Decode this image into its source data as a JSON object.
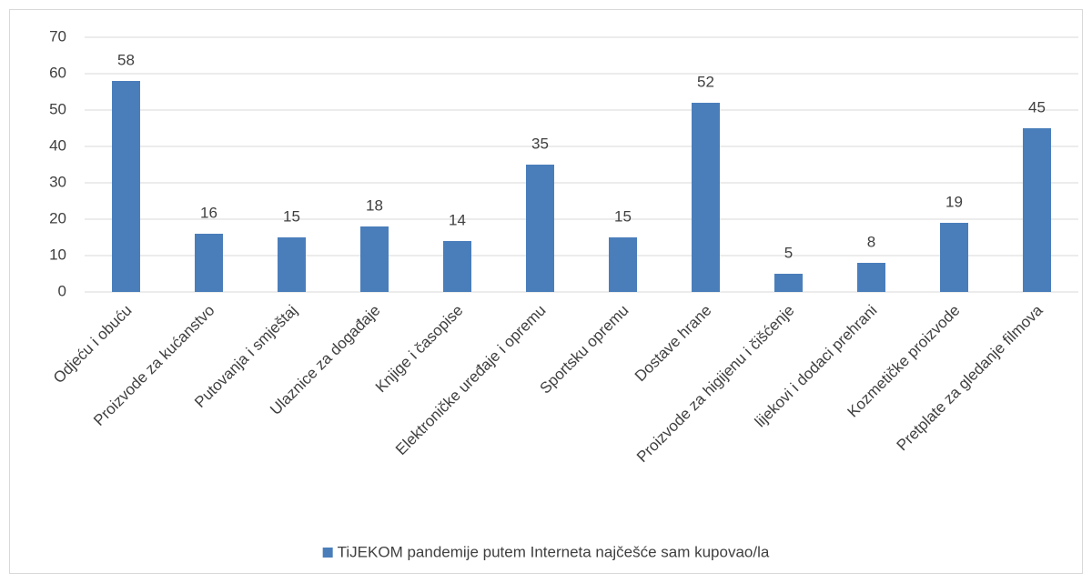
{
  "chart_data": {
    "type": "bar",
    "categories": [
      "Odjeću i obuću",
      "Proizvode za kućanstvo",
      "Putovanja i smještaj",
      "Ulaznice za događaje",
      "Knjige i časopise",
      "Elektroničke uređaje i opremu",
      "Sportsku opremu",
      "Dostave hrane",
      "Proizvode za higijenu i čišćenje",
      "lijekovi i dodaci prehrani",
      "Kozmetičke proizvode",
      "Pretplate za gledanje filmova"
    ],
    "series": [
      {
        "name": "TiJEKOM pandemije putem Interneta najčešće sam kupovao/la",
        "color": "#4a7ebb",
        "values": [
          58,
          16,
          15,
          18,
          14,
          35,
          15,
          52,
          5,
          8,
          19,
          45
        ]
      }
    ],
    "ylim": [
      0,
      70
    ],
    "yticks": [
      0,
      10,
      20,
      30,
      40,
      50,
      60,
      70
    ],
    "grid": true,
    "legend": "bottom"
  }
}
